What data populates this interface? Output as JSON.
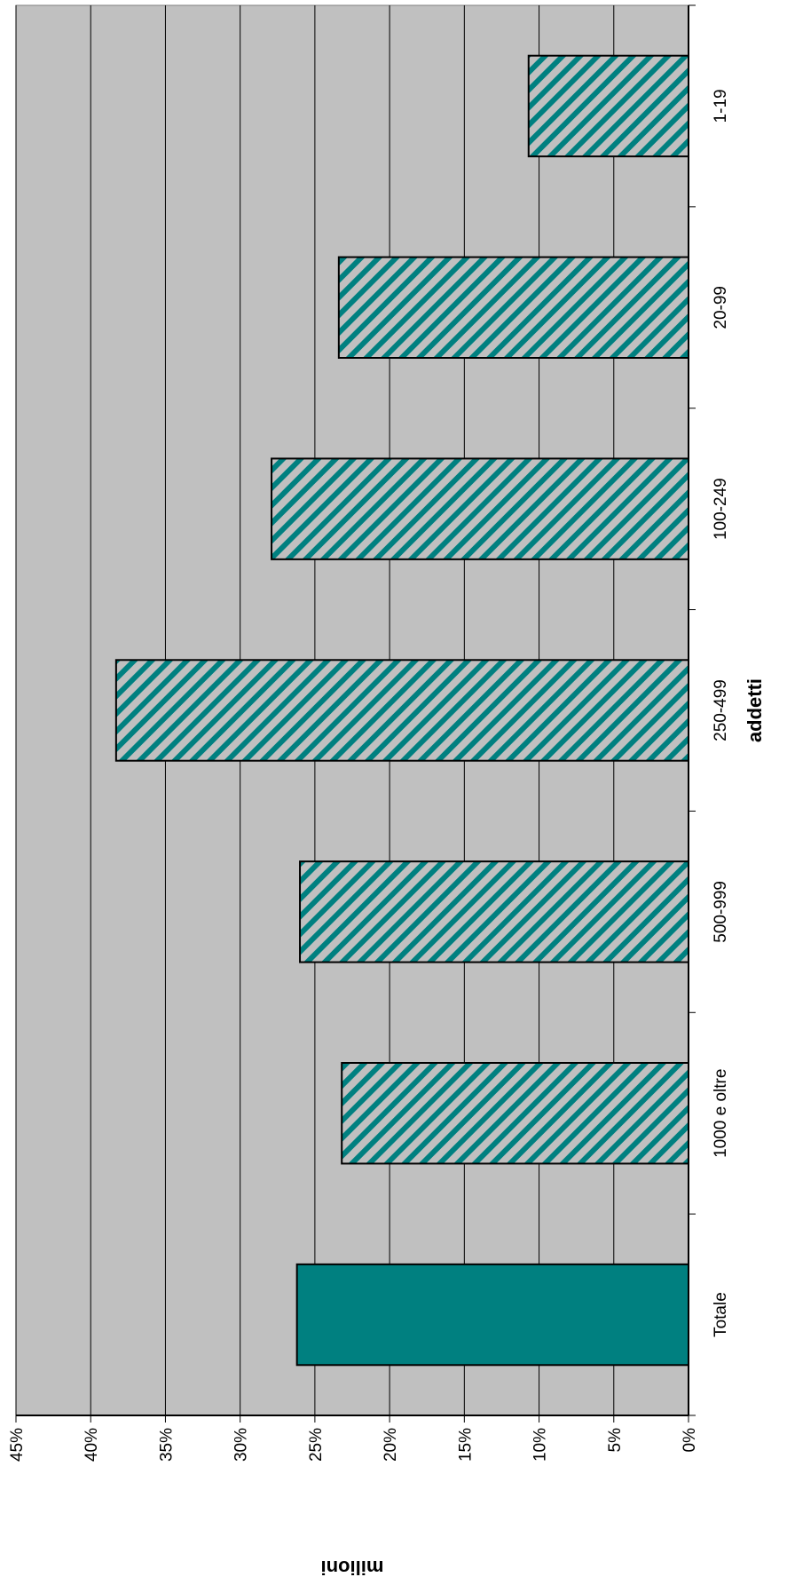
{
  "chart_data": {
    "type": "bar",
    "orientation": "rotated-90",
    "xlabel": "addetti",
    "ylabel": "milioni",
    "ylim": [
      0,
      45
    ],
    "y_ticks": [
      "0%",
      "5%",
      "10%",
      "15%",
      "20%",
      "25%",
      "30%",
      "35%",
      "40%",
      "45%"
    ],
    "categories": [
      "1-19",
      "20-99",
      "100-249",
      "250-499",
      "500-999",
      "1000 e oltre",
      "Totale"
    ],
    "values": [
      10.7,
      23.4,
      27.9,
      38.3,
      26.0,
      23.2,
      26.2
    ],
    "grid": true,
    "legend": "none",
    "colors": {
      "plot_background": "#c0c0c0",
      "bar_teal": "#008080",
      "bar_stripe_light": "#c0c0c0",
      "gridline": "#000000"
    }
  }
}
